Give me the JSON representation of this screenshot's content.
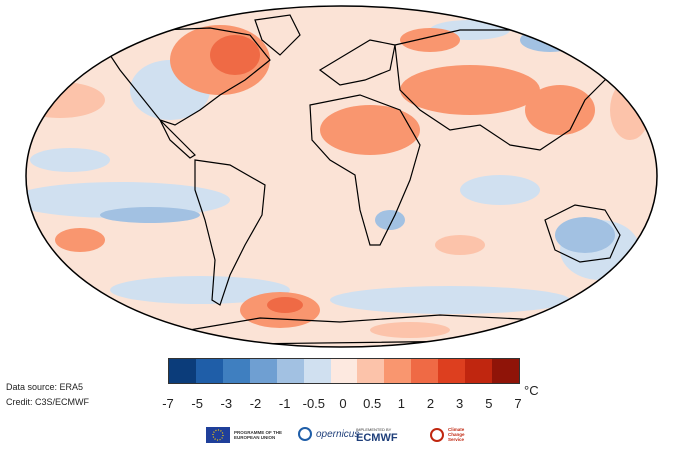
{
  "legend": {
    "unit": "°C",
    "tick_labels": [
      "-7",
      "-5",
      "-3",
      "-2",
      "-1",
      "-0.5",
      "0",
      "0.5",
      "1",
      "2",
      "3",
      "5",
      "7"
    ],
    "colors": [
      "#0b3c7a",
      "#1f5ea8",
      "#3f7fc0",
      "#6f9fd2",
      "#a2c1e2",
      "#d0e0f0",
      "#fde9e0",
      "#fcc3aa",
      "#f9966f",
      "#ef6a45",
      "#dd3f1f",
      "#c0260f",
      "#8f1408"
    ]
  },
  "credits": {
    "source": "Data source: ERA5",
    "credit": "Credit: C3S/ECMWF"
  },
  "logos": {
    "eu": "PROGRAMME OF THE EUROPEAN UNION",
    "copernicus": "opernicus",
    "ecmwf": "ECMWF",
    "ecmwf_small": "IMPLEMENTED BY",
    "c3s": "Climate Change Service"
  },
  "map": {
    "ocean_color": "#f8dfd3",
    "land_stroke": "#000000",
    "warm_colors": [
      "#fcc3aa",
      "#f9966f",
      "#ef6a45"
    ],
    "cool_colors": [
      "#d0e0f0",
      "#a2c1e2",
      "#6f9fd2"
    ]
  }
}
